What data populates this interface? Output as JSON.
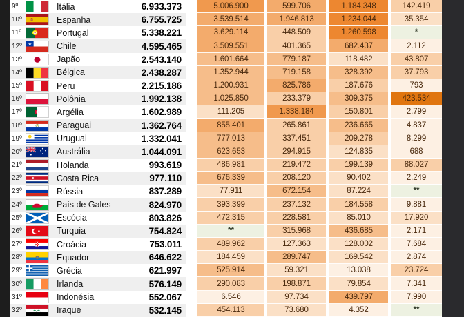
{
  "chart_data": {
    "type": "table",
    "columns": [
      "rank",
      "country",
      "total",
      "value_a",
      "value_b",
      "value_c",
      "value_d"
    ],
    "note_symbols": [
      "*",
      "**"
    ],
    "rows": [
      {
        "rank": "9º",
        "flag": "italy",
        "country": "Itália",
        "total": "6.933.373",
        "values": [
          "5.006.900",
          "599.706",
          "1.184.348",
          "142.419"
        ],
        "shades": [
          5,
          4,
          6,
          2
        ]
      },
      {
        "rank": "10º",
        "flag": "spain",
        "country": "Espanha",
        "total": "6.755.725",
        "values": [
          "3.539.514",
          "1.946.813",
          "1.234.044",
          "35.354"
        ],
        "shades": [
          4,
          4,
          6,
          1
        ]
      },
      {
        "rank": "11º",
        "flag": "portugal",
        "country": "Portugal",
        "total": "5.338.221",
        "values": [
          "3.629.114",
          "448.509",
          "1.260.598",
          "*"
        ],
        "shades": [
          4,
          2,
          6,
          "g"
        ]
      },
      {
        "rank": "12º",
        "flag": "chile",
        "country": "Chile",
        "total": "4.595.465",
        "values": [
          "3.509.551",
          "401.365",
          "682.437",
          "2.112"
        ],
        "shades": [
          4,
          2,
          4,
          0
        ]
      },
      {
        "rank": "13º",
        "flag": "japan",
        "country": "Japão",
        "total": "2.543.140",
        "values": [
          "1.601.664",
          "779.187",
          "118.482",
          "43.807"
        ],
        "shades": [
          3,
          3,
          1,
          2
        ]
      },
      {
        "rank": "14º",
        "flag": "belgium",
        "country": "Bélgica",
        "total": "2.438.287",
        "values": [
          "1.352.944",
          "719.158",
          "328.392",
          "37.793"
        ],
        "shades": [
          3,
          3,
          3,
          2
        ]
      },
      {
        "rank": "15º",
        "flag": "peru",
        "country": "Peru",
        "total": "2.215.186",
        "values": [
          "1.200.931",
          "825.786",
          "187.676",
          "793"
        ],
        "shades": [
          3,
          4,
          2,
          0
        ]
      },
      {
        "rank": "16º",
        "flag": "poland",
        "country": "Polônia",
        "total": "1.992.138",
        "values": [
          "1.025.850",
          "233.379",
          "309.375",
          "423.534"
        ],
        "shades": [
          3,
          2,
          3,
          7
        ]
      },
      {
        "rank": "17º",
        "flag": "algeria",
        "country": "Argélia",
        "total": "1.602.989",
        "values": [
          "111.205",
          "1.338.184",
          "150.801",
          "2.799"
        ],
        "shades": [
          1,
          5,
          2,
          0
        ]
      },
      {
        "rank": "18º",
        "flag": "paraguay",
        "country": "Paraguai",
        "total": "1.362.764",
        "values": [
          "855.401",
          "265.861",
          "236.665",
          "4.837"
        ],
        "shades": [
          4,
          2,
          3,
          0
        ]
      },
      {
        "rank": "19º",
        "flag": "uruguay",
        "country": "Uruguai",
        "total": "1.332.041",
        "values": [
          "777.013",
          "337.451",
          "209.278",
          "8.299"
        ],
        "shades": [
          3,
          2,
          2,
          0
        ]
      },
      {
        "rank": "20º",
        "flag": "australia",
        "country": "Austrália",
        "total": "1.044.091",
        "values": [
          "623.653",
          "294.915",
          "124.835",
          "688"
        ],
        "shades": [
          3,
          2,
          1,
          0
        ]
      },
      {
        "rank": "21º",
        "flag": "netherlands",
        "country": "Holanda",
        "total": "993.619",
        "values": [
          "486.981",
          "219.472",
          "199.139",
          "88.027"
        ],
        "shades": [
          2,
          2,
          2,
          2
        ]
      },
      {
        "rank": "22º",
        "flag": "costarica",
        "country": "Costa Rica",
        "total": "977.110",
        "values": [
          "676.339",
          "208.120",
          "90.402",
          "2.249"
        ],
        "shades": [
          3,
          2,
          1,
          0
        ]
      },
      {
        "rank": "23º",
        "flag": "russia",
        "country": "Rússia",
        "total": "837.289",
        "values": [
          "77.911",
          "672.154",
          "87.224",
          "**"
        ],
        "shades": [
          1,
          3,
          1,
          "g"
        ]
      },
      {
        "rank": "24º",
        "flag": "wales",
        "country": "País de Gales",
        "total": "824.970",
        "values": [
          "393.399",
          "237.132",
          "184.558",
          "9.881"
        ],
        "shades": [
          2,
          2,
          2,
          0
        ]
      },
      {
        "rank": "25º",
        "flag": "scotland",
        "country": "Escócia",
        "total": "803.826",
        "values": [
          "472.315",
          "228.581",
          "85.010",
          "17.920"
        ],
        "shades": [
          2,
          2,
          1,
          1
        ]
      },
      {
        "rank": "26º",
        "flag": "turkey",
        "country": "Turquia",
        "total": "754.824",
        "values": [
          "**",
          "315.968",
          "436.685",
          "2.171"
        ],
        "shades": [
          "g",
          2,
          3,
          0
        ]
      },
      {
        "rank": "27º",
        "flag": "croatia",
        "country": "Croácia",
        "total": "753.011",
        "values": [
          "489.962",
          "127.363",
          "128.002",
          "7.684"
        ],
        "shades": [
          2,
          1,
          1,
          0
        ]
      },
      {
        "rank": "28º",
        "flag": "ecuador",
        "country": "Equador",
        "total": "646.622",
        "values": [
          "184.459",
          "289.747",
          "169.542",
          "2.874"
        ],
        "shades": [
          1,
          3,
          1,
          0
        ]
      },
      {
        "rank": "29º",
        "flag": "greece",
        "country": "Grécia",
        "total": "621.997",
        "values": [
          "525.914",
          "59.321",
          "13.038",
          "23.724"
        ],
        "shades": [
          3,
          1,
          0,
          2
        ]
      },
      {
        "rank": "30º",
        "flag": "ireland",
        "country": "Irlanda",
        "total": "576.149",
        "values": [
          "290.083",
          "198.871",
          "79.854",
          "7.341"
        ],
        "shades": [
          2,
          2,
          1,
          0
        ]
      },
      {
        "rank": "31º",
        "flag": "indonesia",
        "country": "Indonésia",
        "total": "552.067",
        "values": [
          "6.546",
          "97.734",
          "439.797",
          "7.990"
        ],
        "shades": [
          0,
          1,
          4,
          0
        ]
      },
      {
        "rank": "32º",
        "flag": "iraq",
        "country": "Iraque",
        "total": "532.145",
        "values": [
          "454.113",
          "73.680",
          "4.352",
          "**"
        ],
        "shades": [
          2,
          1,
          0,
          "g"
        ]
      }
    ]
  },
  "colors": {
    "heat_palette": [
      "#FDF0E3",
      "#FBE0C6",
      "#F9CFA8",
      "#F6BD8A",
      "#F3AB6C",
      "#F0994E",
      "#ED8730",
      "#E0750F"
    ],
    "footnote_bg": "#EDF1E1",
    "row_white": "#FFFFFF",
    "row_stripe": "#EFEFEF",
    "frame_left": "#1D1D1D",
    "frame_right": "#2A2A2D",
    "value_text": "#4A2A0E"
  }
}
